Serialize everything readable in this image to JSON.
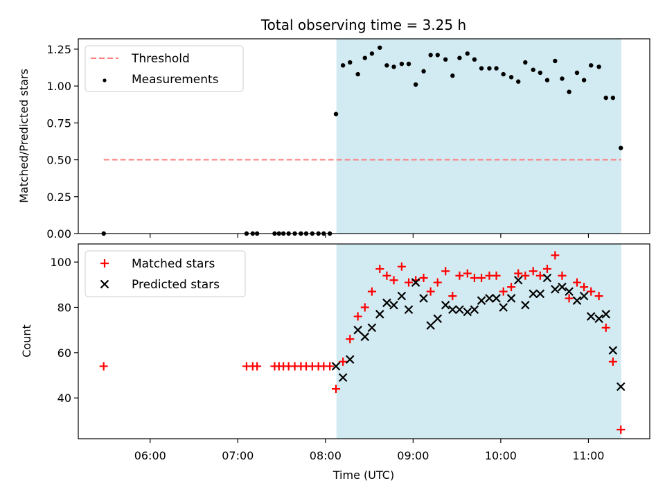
{
  "chart_data": [
    {
      "type": "scatter",
      "title": "Total observing time = 3.25 h",
      "xlabel": "",
      "ylabel": "Matched/Predicted stars",
      "ylim": [
        0,
        1.32
      ],
      "yticks": [
        "0.00",
        "0.25",
        "0.50",
        "0.75",
        "1.00",
        "1.25"
      ],
      "ytick_values": [
        0,
        0.25,
        0.5,
        0.75,
        1.0,
        1.25
      ],
      "legend_position": "upper-left",
      "shaded_interval": {
        "start": 8.125,
        "end": 11.375,
        "color": "#add8e6"
      },
      "threshold": {
        "name": "Threshold",
        "y": 0.5,
        "x_start": 5.47,
        "x_end": 11.375,
        "color": "#ff7f7f"
      },
      "series": [
        {
          "name": "Measurements",
          "color": "#000000",
          "marker": "dot",
          "x": [
            5.47,
            7.1,
            7.17,
            7.22,
            7.42,
            7.47,
            7.52,
            7.58,
            7.65,
            7.72,
            7.78,
            7.85,
            7.92,
            7.98,
            8.05,
            8.12,
            8.2,
            8.28,
            8.37,
            8.45,
            8.53,
            8.62,
            8.7,
            8.78,
            8.87,
            8.95,
            9.03,
            9.12,
            9.2,
            9.28,
            9.37,
            9.45,
            9.53,
            9.62,
            9.7,
            9.78,
            9.87,
            9.95,
            10.03,
            10.12,
            10.2,
            10.28,
            10.37,
            10.45,
            10.53,
            10.62,
            10.7,
            10.78,
            10.87,
            10.95,
            11.03,
            11.12,
            11.2,
            11.28,
            11.37
          ],
          "y": [
            0.0,
            0.0,
            0.0,
            0.0,
            0.0,
            0.0,
            0.0,
            0.0,
            0.0,
            0.0,
            0.0,
            0.0,
            0.0,
            0.0,
            0.0,
            0.81,
            1.14,
            1.16,
            1.08,
            1.19,
            1.22,
            1.26,
            1.14,
            1.13,
            1.15,
            1.15,
            1.01,
            1.1,
            1.21,
            1.21,
            1.18,
            1.07,
            1.19,
            1.22,
            1.18,
            1.12,
            1.12,
            1.12,
            1.08,
            1.06,
            1.03,
            1.16,
            1.11,
            1.09,
            1.04,
            1.17,
            1.05,
            0.96,
            1.09,
            1.04,
            1.14,
            1.13,
            0.92,
            0.92,
            0.58
          ]
        }
      ]
    },
    {
      "type": "scatter",
      "title": "",
      "xlabel": "Time (UTC)",
      "ylabel": "Count",
      "ylim": [
        22,
        108
      ],
      "yticks": [
        "40",
        "60",
        "80",
        "100"
      ],
      "ytick_values": [
        40,
        60,
        80,
        100
      ],
      "xlim": [
        5.18,
        11.7
      ],
      "xticks": [
        "06:00",
        "07:00",
        "08:00",
        "09:00",
        "10:00",
        "11:00"
      ],
      "xtick_values": [
        6,
        7,
        8,
        9,
        10,
        11
      ],
      "legend_position": "upper-left",
      "shaded_interval": {
        "start": 8.125,
        "end": 11.375,
        "color": "#add8e6"
      },
      "series": [
        {
          "name": "Matched stars",
          "color": "#ff0000",
          "marker": "plus",
          "x": [
            5.47,
            7.1,
            7.17,
            7.22,
            7.42,
            7.47,
            7.52,
            7.58,
            7.65,
            7.72,
            7.78,
            7.85,
            7.92,
            7.98,
            8.05,
            8.12,
            8.2,
            8.28,
            8.37,
            8.45,
            8.53,
            8.62,
            8.7,
            8.78,
            8.87,
            8.95,
            9.03,
            9.12,
            9.2,
            9.28,
            9.37,
            9.45,
            9.53,
            9.62,
            9.7,
            9.78,
            9.87,
            9.95,
            10.03,
            10.12,
            10.2,
            10.28,
            10.37,
            10.45,
            10.53,
            10.62,
            10.7,
            10.78,
            10.87,
            10.95,
            11.03,
            11.12,
            11.2,
            11.28,
            11.37
          ],
          "y": [
            54,
            54,
            54,
            54,
            54,
            54,
            54,
            54,
            54,
            54,
            54,
            54,
            54,
            54,
            54,
            44,
            56,
            66,
            76,
            80,
            87,
            97,
            94,
            92,
            98,
            91,
            92,
            93,
            87,
            91,
            96,
            85,
            94,
            95,
            93,
            93,
            94,
            94,
            87,
            89,
            95,
            94,
            96,
            94,
            97,
            103,
            94,
            84,
            91,
            89,
            87,
            85,
            71,
            56,
            26
          ]
        },
        {
          "name": "Predicted stars",
          "color": "#000000",
          "marker": "x",
          "x": [
            8.12,
            8.2,
            8.28,
            8.37,
            8.45,
            8.53,
            8.62,
            8.7,
            8.78,
            8.87,
            8.95,
            9.03,
            9.12,
            9.2,
            9.28,
            9.37,
            9.45,
            9.53,
            9.62,
            9.7,
            9.78,
            9.87,
            9.95,
            10.03,
            10.12,
            10.2,
            10.28,
            10.37,
            10.45,
            10.53,
            10.62,
            10.7,
            10.78,
            10.87,
            10.95,
            11.03,
            11.12,
            11.2,
            11.28,
            11.37
          ],
          "y": [
            54,
            49,
            57,
            70,
            67,
            71,
            77,
            82,
            81,
            85,
            79,
            91,
            84,
            72,
            75,
            81,
            79,
            79,
            78,
            79,
            83,
            84,
            84,
            80,
            84,
            92,
            81,
            86,
            86,
            93,
            88,
            89,
            87,
            83,
            85,
            76,
            75,
            77,
            61,
            45
          ]
        }
      ]
    }
  ]
}
